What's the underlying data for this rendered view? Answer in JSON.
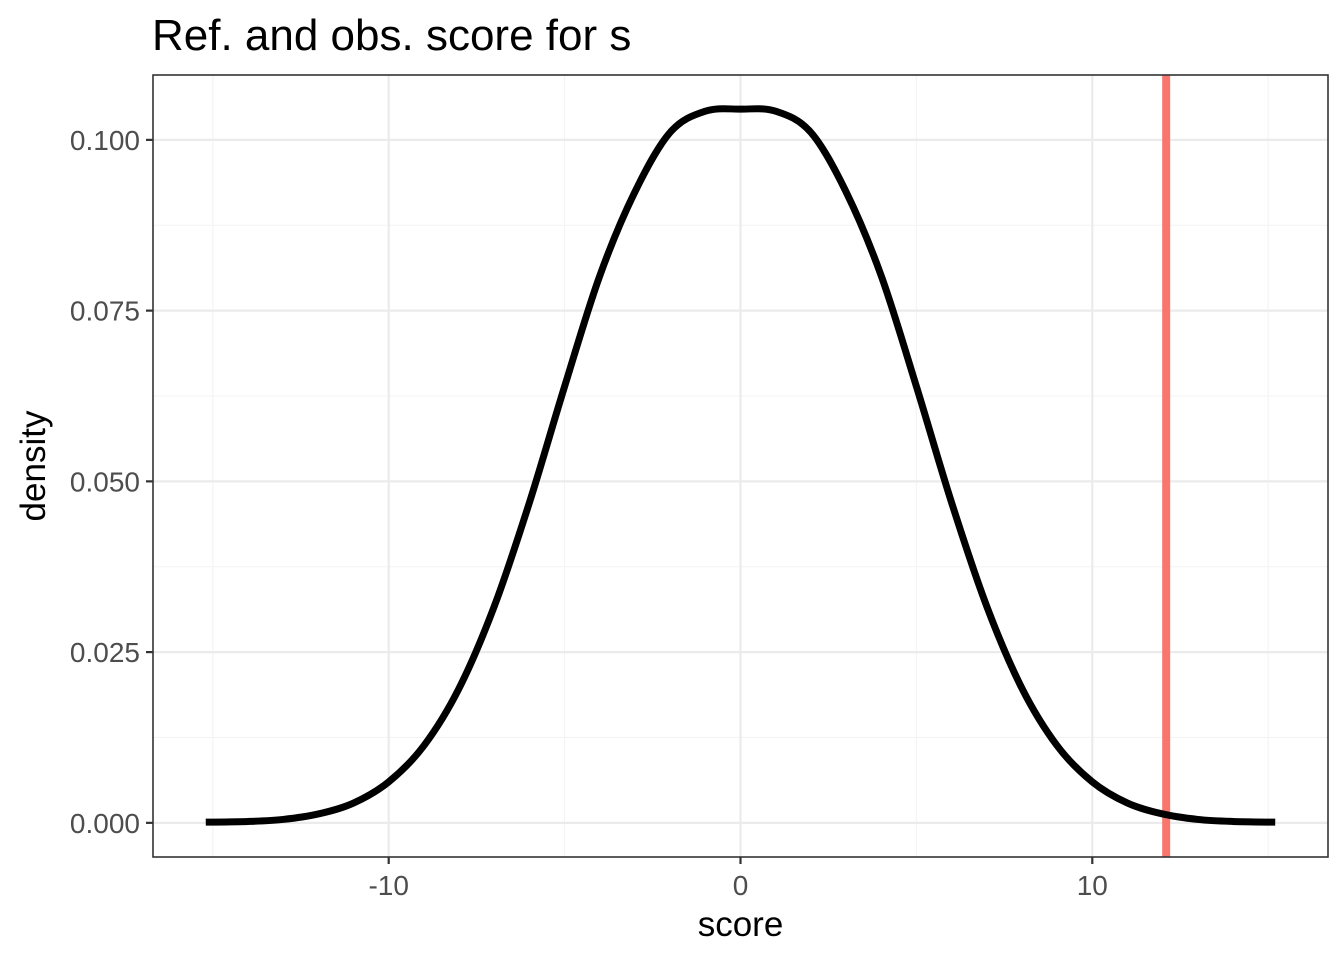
{
  "chart_data": {
    "type": "line",
    "title": "Ref. and obs. score for s",
    "xlabel": "score",
    "ylabel": "density",
    "xlim": [
      -16.7,
      16.7
    ],
    "ylim": [
      -0.005,
      0.1095
    ],
    "x_ticks": [
      -10,
      0,
      10
    ],
    "x_tick_labels": [
      "-10",
      "0",
      "10"
    ],
    "x_minor_ticks": [
      -15,
      -5,
      5,
      15
    ],
    "y_ticks": [
      0,
      0.025,
      0.05,
      0.075,
      0.1
    ],
    "y_tick_labels": [
      "0.000",
      "0.025",
      "0.050",
      "0.075",
      "0.100"
    ],
    "y_minor_ticks": [
      0.0125,
      0.0375,
      0.0625,
      0.0875
    ],
    "grid": true,
    "series": [
      {
        "type": "density_curve",
        "color": "#000000",
        "x": [
          -15.2,
          -14,
          -13,
          -12,
          -11,
          -10,
          -9,
          -8,
          -7,
          -6,
          -5,
          -4,
          -3,
          -2,
          -1,
          0,
          1,
          2,
          3,
          4,
          5,
          6,
          7,
          8,
          9,
          10,
          11,
          12,
          13,
          14,
          15.2
        ],
        "y": [
          0.0001,
          0.0002,
          0.0005,
          0.0013,
          0.0029,
          0.006,
          0.0113,
          0.0197,
          0.0317,
          0.0469,
          0.0639,
          0.0801,
          0.0924,
          0.1011,
          0.1042,
          0.1045,
          0.1042,
          0.1011,
          0.0924,
          0.0801,
          0.0639,
          0.0469,
          0.0317,
          0.0197,
          0.0113,
          0.006,
          0.0029,
          0.0013,
          0.0005,
          0.0002,
          0.0001
        ]
      }
    ],
    "vlines": [
      {
        "x": 12.1,
        "color": "#f8766d"
      }
    ]
  }
}
